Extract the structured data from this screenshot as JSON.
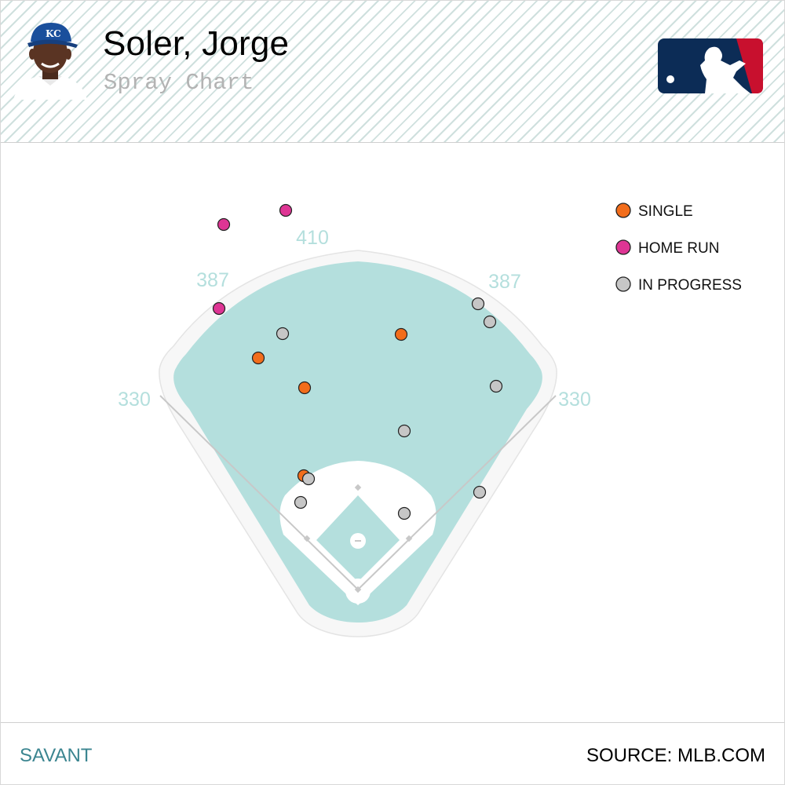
{
  "header": {
    "player_name": "Soler, Jorge",
    "subtitle": "Spray Chart"
  },
  "footer": {
    "brand": "SAVANT",
    "source": "SOURCE: MLB.COM"
  },
  "colors": {
    "outfield_grass": "#b4dfdd",
    "warning_track": "#f7f7f7",
    "distance_label": "#b4dfdd",
    "single": "#f26d1b",
    "home_run": "#de3594",
    "in_progress": "#c6c6c6",
    "logo_blue": "#0c2c56",
    "logo_red": "#c8102e"
  },
  "chart_data": {
    "type": "scatter",
    "title": "Spray Chart",
    "field": "baseball spray chart, home plate at bottom",
    "distance_labels": {
      "left_line": "330",
      "left_center": "387",
      "center": "410",
      "right_center": "387",
      "right_line": "330"
    },
    "legend": {
      "placement": "top-right",
      "entries": [
        {
          "label": "SINGLE",
          "color": "#f26d1b"
        },
        {
          "label": "HOME RUN",
          "color": "#de3594"
        },
        {
          "label": "IN PROGRESS",
          "color": "#c6c6c6"
        }
      ]
    },
    "units": "hit coordinates relative to home plate (0,0); x positive toward right field, y toward center field",
    "series": [
      {
        "name": "SINGLE",
        "color": "#f26d1b",
        "points": [
          [
            -127,
            295
          ],
          [
            -68,
            257
          ],
          [
            55,
            325
          ],
          [
            -69,
            145
          ]
        ]
      },
      {
        "name": "HOME RUN",
        "color": "#de3594",
        "points": [
          [
            -171,
            465
          ],
          [
            -92,
            483
          ],
          [
            -177,
            358
          ]
        ]
      },
      {
        "name": "IN PROGRESS",
        "color": "#c6c6c6",
        "points": [
          [
            153,
            364
          ],
          [
            168,
            341
          ],
          [
            -96,
            326
          ],
          [
            176,
            259
          ],
          [
            59,
            202
          ],
          [
            -63,
            141
          ],
          [
            -73,
            111
          ],
          [
            59,
            97
          ],
          [
            155,
            124
          ]
        ]
      }
    ]
  }
}
